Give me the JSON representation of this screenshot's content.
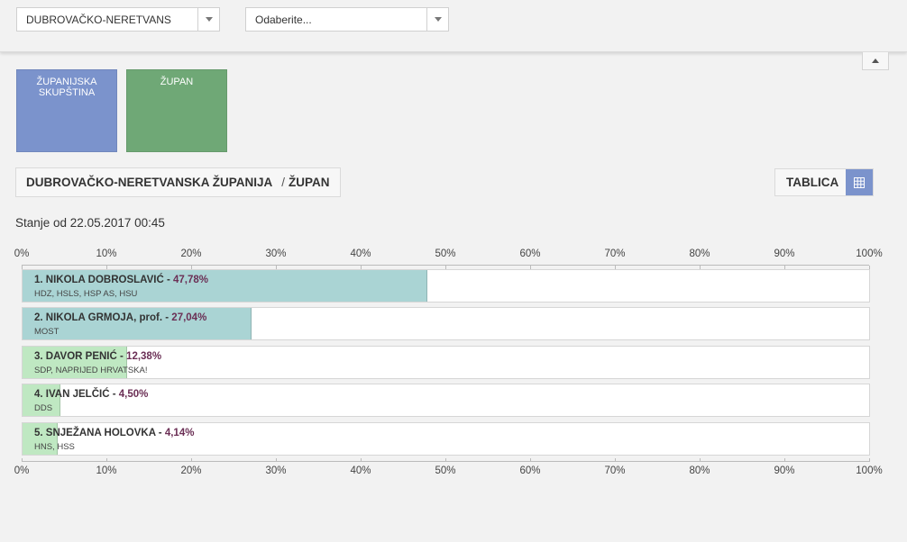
{
  "filters": {
    "county_select": "DUBROVAČKO-NERETVANS",
    "municipality_select": "Odaberite..."
  },
  "tiles": [
    {
      "label": "ŽUPANIJSKA SKUPŠTINA",
      "color": "#7b93cc"
    },
    {
      "label": "ŽUPAN",
      "color": "#6fa876"
    }
  ],
  "breadcrumb": {
    "county": "DUBROVAČKO-NERETVANSKA ŽUPANIJA",
    "separator": "/",
    "section": "ŽUPAN"
  },
  "table_toggle": {
    "label": "TABLICA",
    "icon": "table-grid-icon"
  },
  "status": "Stanje od 22.05.2017 00:45",
  "axis_ticks": [
    "0%",
    "10%",
    "20%",
    "30%",
    "40%",
    "50%",
    "60%",
    "70%",
    "80%",
    "90%",
    "100%"
  ],
  "candidates": [
    {
      "name": "1. NIKOLA DOBROSLAVIĆ",
      "pct_label": "47,78%",
      "value": 47.78,
      "party": "HDZ, HSLS, HSP AS, HSU",
      "color": "#aad4d4"
    },
    {
      "name": "2. NIKOLA GRMOJA, prof.",
      "pct_label": "27,04%",
      "value": 27.04,
      "party": "MOST",
      "color": "#aad4d4"
    },
    {
      "name": "3. DAVOR PENIĆ",
      "pct_label": "12,38%",
      "value": 12.38,
      "party": "SDP, NAPRIJED HRVATSKA!",
      "color": "#bfe8c2"
    },
    {
      "name": "4. IVAN JELČIĆ",
      "pct_label": "4,50%",
      "value": 4.5,
      "party": "DDS",
      "color": "#bfe8c2"
    },
    {
      "name": "5. SNJEŽANA HOLOVKA",
      "pct_label": "4,14%",
      "value": 4.14,
      "party": "HNS, HSS",
      "color": "#bfe8c2"
    }
  ],
  "colors": {
    "accent_blue": "#7b93cc",
    "accent_green": "#6fa876",
    "percent_text": "#6b2f55"
  }
}
